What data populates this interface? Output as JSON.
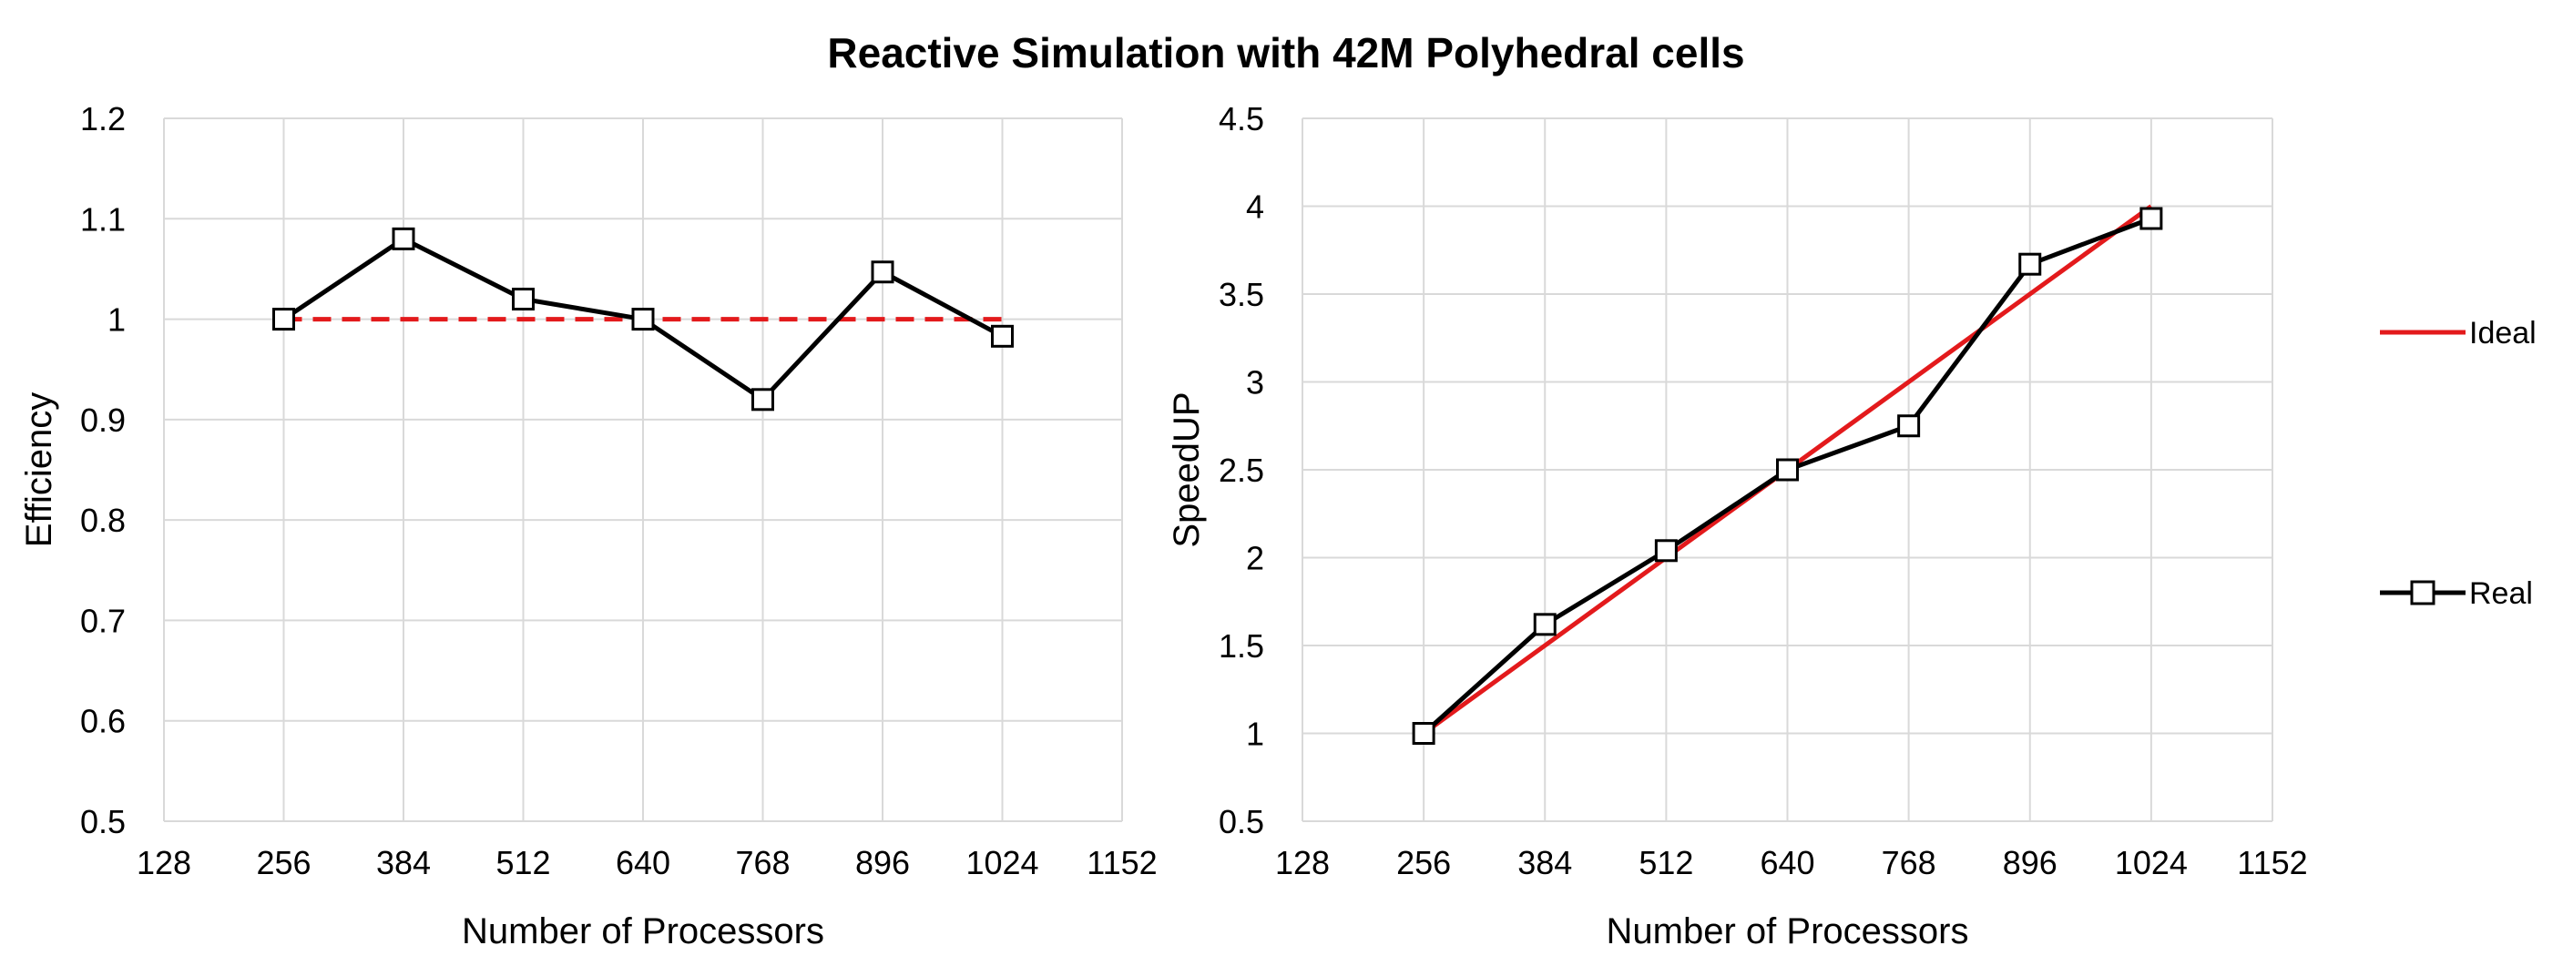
{
  "title": "Reactive Simulation with 42M Polyhedral cells",
  "colors": {
    "ideal": "#e31a1c",
    "real": "#000000",
    "grid": "#d9d9d9"
  },
  "legend": {
    "ideal": "Ideal",
    "real": "Real",
    "placement": "right"
  },
  "chart_data": [
    {
      "type": "line",
      "xlabel": "Number of Processors",
      "ylabel": "Efficiency",
      "xlim": [
        128,
        1152
      ],
      "xticks": [
        128,
        256,
        384,
        512,
        640,
        768,
        896,
        1024,
        1152
      ],
      "ylim": [
        0.5,
        1.2
      ],
      "yticks": [
        0.5,
        0.6,
        0.7,
        0.8,
        0.9,
        1,
        1.1,
        1.2
      ],
      "grid": true,
      "series": [
        {
          "name": "Ideal",
          "style": "dashed",
          "marker": "none",
          "x": [
            256,
            384,
            512,
            640,
            768,
            896,
            1024
          ],
          "y": [
            1,
            1,
            1,
            1,
            1,
            1,
            1
          ]
        },
        {
          "name": "Real",
          "style": "solid",
          "marker": "square",
          "x": [
            256,
            384,
            512,
            640,
            768,
            896,
            1024
          ],
          "y": [
            1.0,
            1.08,
            1.02,
            1.0,
            0.92,
            1.047,
            0.983
          ]
        }
      ]
    },
    {
      "type": "line",
      "xlabel": "Number of Processors",
      "ylabel": "SpeedUP",
      "xlim": [
        128,
        1152
      ],
      "xticks": [
        128,
        256,
        384,
        512,
        640,
        768,
        896,
        1024,
        1152
      ],
      "ylim": [
        0.5,
        4.5
      ],
      "yticks": [
        0.5,
        1,
        1.5,
        2,
        2.5,
        3,
        3.5,
        4,
        4.5
      ],
      "grid": true,
      "series": [
        {
          "name": "Ideal",
          "style": "solid",
          "marker": "none",
          "x": [
            256,
            384,
            512,
            640,
            768,
            896,
            1024
          ],
          "y": [
            1,
            1.5,
            2,
            2.5,
            3,
            3.5,
            4
          ]
        },
        {
          "name": "Real",
          "style": "solid",
          "marker": "square",
          "x": [
            256,
            384,
            512,
            640,
            768,
            896,
            1024
          ],
          "y": [
            1.0,
            1.62,
            2.04,
            2.5,
            2.75,
            3.67,
            3.93
          ]
        }
      ]
    }
  ]
}
